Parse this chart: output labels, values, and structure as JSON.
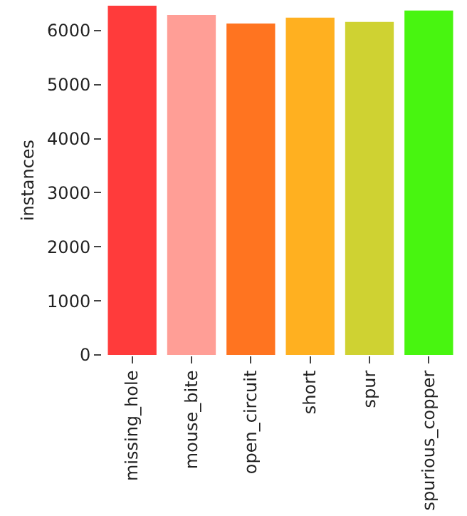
{
  "chart_data": {
    "type": "bar",
    "ylabel": "instances",
    "categories": [
      "missing_hole",
      "mouse_bite",
      "open_circuit",
      "short",
      "spur",
      "spurious_copper"
    ],
    "values": [
      6460,
      6290,
      6130,
      6240,
      6160,
      6370
    ],
    "colors": [
      "#ff3b3b",
      "#ff9e96",
      "#ff7420",
      "#ffb020",
      "#cfd232",
      "#48f510"
    ],
    "ylim": [
      0,
      6460
    ],
    "yticks": [
      0,
      1000,
      2000,
      3000,
      4000,
      5000,
      6000
    ]
  }
}
